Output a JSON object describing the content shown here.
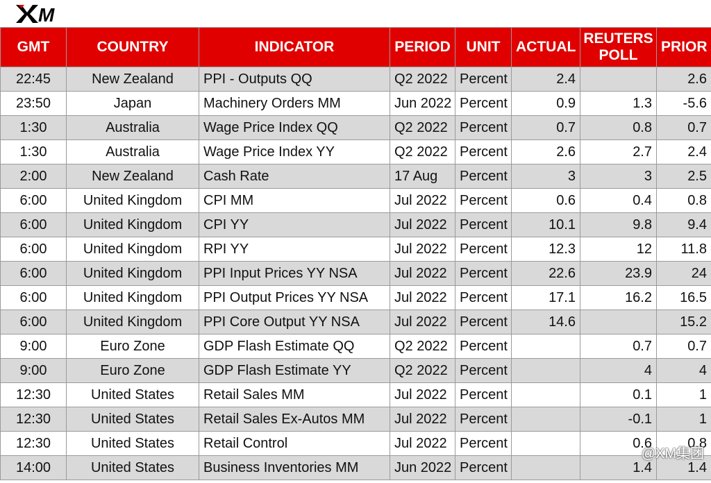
{
  "logo": {
    "text": "XM"
  },
  "headers": [
    "GMT",
    "COUNTRY",
    "INDICATOR",
    "PERIOD",
    "UNIT",
    "ACTUAL",
    "REUTERS POLL",
    "PRIOR"
  ],
  "rows": [
    [
      "22:45",
      "New Zealand",
      "PPI - Outputs QQ",
      "Q2 2022",
      "Percent",
      "2.4",
      "",
      "2.6"
    ],
    [
      "23:50",
      "Japan",
      "Machinery Orders MM",
      "Jun 2022",
      "Percent",
      "0.9",
      "1.3",
      "-5.6"
    ],
    [
      "1:30",
      "Australia",
      "Wage Price Index QQ",
      "Q2 2022",
      "Percent",
      "0.7",
      "0.8",
      "0.7"
    ],
    [
      "1:30",
      "Australia",
      "Wage Price Index YY",
      "Q2 2022",
      "Percent",
      "2.6",
      "2.7",
      "2.4"
    ],
    [
      "2:00",
      "New Zealand",
      "Cash Rate",
      "17 Aug",
      "Percent",
      "3",
      "3",
      "2.5"
    ],
    [
      "6:00",
      "United Kingdom",
      "CPI MM",
      "Jul 2022",
      "Percent",
      "0.6",
      "0.4",
      "0.8"
    ],
    [
      "6:00",
      "United Kingdom",
      "CPI YY",
      "Jul 2022",
      "Percent",
      "10.1",
      "9.8",
      "9.4"
    ],
    [
      "6:00",
      "United Kingdom",
      "RPI YY",
      "Jul 2022",
      "Percent",
      "12.3",
      "12",
      "11.8"
    ],
    [
      "6:00",
      "United Kingdom",
      "PPI Input Prices YY NSA",
      "Jul 2022",
      "Percent",
      "22.6",
      "23.9",
      "24"
    ],
    [
      "6:00",
      "United Kingdom",
      "PPI Output Prices YY NSA",
      "Jul 2022",
      "Percent",
      "17.1",
      "16.2",
      "16.5"
    ],
    [
      "6:00",
      "United Kingdom",
      "PPI Core Output YY NSA",
      "Jul 2022",
      "Percent",
      "14.6",
      "",
      "15.2"
    ],
    [
      "9:00",
      "Euro Zone",
      "GDP Flash Estimate QQ",
      "Q2 2022",
      "Percent",
      "",
      "0.7",
      "0.7"
    ],
    [
      "9:00",
      "Euro Zone",
      "GDP Flash Estimate YY",
      "Q2 2022",
      "Percent",
      "",
      "4",
      "4"
    ],
    [
      "12:30",
      "United States",
      "Retail Sales MM",
      "Jul 2022",
      "Percent",
      "",
      "0.1",
      "1"
    ],
    [
      "12:30",
      "United States",
      "Retail Sales Ex-Autos MM",
      "Jul 2022",
      "Percent",
      "",
      "-0.1",
      "1"
    ],
    [
      "12:30",
      "United States",
      "Retail Control",
      "Jul 2022",
      "Percent",
      "",
      "0.6",
      "0.8"
    ],
    [
      "14:00",
      "United States",
      "Business Inventories MM",
      "Jun 2022",
      "Percent",
      "",
      "1.4",
      "1.4"
    ]
  ],
  "watermark": "@XM集团",
  "colors": {
    "header_bg": "#e00000",
    "stripe": "#d9d9d9"
  }
}
